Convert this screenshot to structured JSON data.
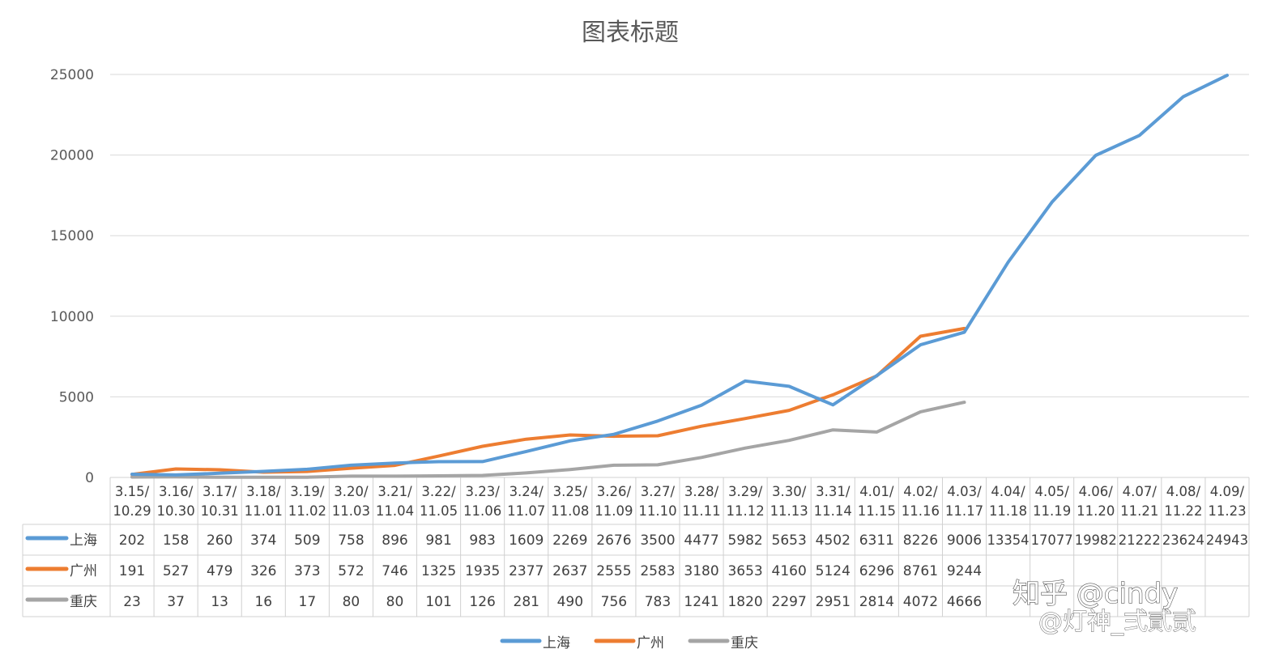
{
  "chart_data": {
    "type": "line",
    "title": "图表标题",
    "ylim": [
      0,
      25000
    ],
    "yticks": [
      0,
      5000,
      10000,
      15000,
      20000,
      25000
    ],
    "grid": true,
    "legend_placement": "bottom",
    "categories": [
      "3.15/10.29",
      "3.16/10.30",
      "3.17/10.31",
      "3.18/11.01",
      "3.19/11.02",
      "3.20/11.03",
      "3.21/11.04",
      "3.22/11.05",
      "3.23/11.06",
      "3.24/11.07",
      "3.25/11.08",
      "3.26/11.09",
      "3.27/11.10",
      "3.28/11.11",
      "3.29/11.12",
      "3.30/11.13",
      "3.31/11.14",
      "4.01/11.15",
      "4.02/11.16",
      "4.03/11.17",
      "4.04/11.18",
      "4.05/11.19",
      "4.06/11.20",
      "4.07/11.21",
      "4.08/11.22",
      "4.09/11.23"
    ],
    "series": [
      {
        "name": "上海",
        "color": "#5B9BD5",
        "values": [
          202,
          158,
          260,
          374,
          509,
          758,
          896,
          981,
          983,
          1609,
          2269,
          2676,
          3500,
          4477,
          5982,
          5653,
          4502,
          6311,
          8226,
          9006,
          13354,
          17077,
          19982,
          21222,
          23624,
          24943
        ]
      },
      {
        "name": "广州",
        "color": "#ED7D31",
        "values": [
          191,
          527,
          479,
          326,
          373,
          572,
          746,
          1325,
          1935,
          2377,
          2637,
          2555,
          2583,
          3180,
          3653,
          4160,
          5124,
          6296,
          8761,
          9244,
          null,
          null,
          null,
          null,
          null,
          null
        ]
      },
      {
        "name": "重庆",
        "color": "#A5A5A5",
        "values": [
          23,
          37,
          13,
          16,
          17,
          80,
          80,
          101,
          126,
          281,
          490,
          756,
          783,
          1241,
          1820,
          2297,
          2951,
          2814,
          4072,
          4666,
          null,
          null,
          null,
          null,
          null,
          null
        ]
      }
    ]
  },
  "watermark": {
    "line1": "知乎 @cindy",
    "line2": "@灯神_弍貳贰"
  }
}
